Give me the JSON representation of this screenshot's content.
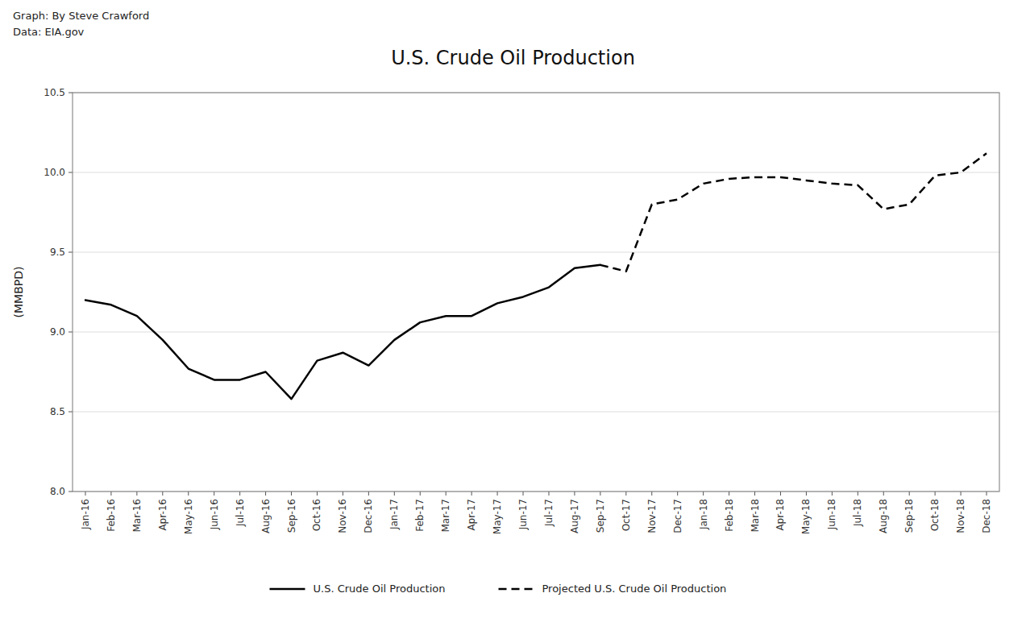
{
  "chart_data": {
    "type": "line",
    "title": "U.S. Crude Oil Production",
    "y_label": "(MMBPD)",
    "annotations": [
      "Graph: By Steve Crawford",
      "Data: EIA.gov"
    ],
    "categories": [
      "Jan-16",
      "Feb-16",
      "Mar-16",
      "Apr-16",
      "May-16",
      "Jun-16",
      "Jul-16",
      "Aug-16",
      "Sep-16",
      "Oct-16",
      "Nov-16",
      "Dec-16",
      "Jan-17",
      "Feb-17",
      "Mar-17",
      "Apr-17",
      "May-17",
      "Jun-17",
      "Jul-17",
      "Aug-17",
      "Sep-17",
      "Oct-17",
      "Nov-17",
      "Dec-17",
      "Jan-18",
      "Feb-18",
      "Mar-18",
      "Apr-18",
      "May-18",
      "Jun-18",
      "Jul-18",
      "Aug-18",
      "Sep-18",
      "Oct-18",
      "Nov-18",
      "Dec-18"
    ],
    "series": [
      {
        "name": "U.S. Crude Oil Production",
        "color": "#000000",
        "line_style": "solid",
        "values": [
          9.2,
          9.17,
          9.1,
          8.95,
          8.77,
          8.7,
          8.7,
          8.75,
          8.58,
          8.82,
          8.87,
          8.79,
          8.95,
          9.06,
          9.1,
          9.1,
          9.18,
          9.22,
          9.28,
          9.4,
          9.42,
          null,
          null,
          null,
          null,
          null,
          null,
          null,
          null,
          null,
          null,
          null,
          null,
          null,
          null,
          null
        ]
      },
      {
        "name": "Projected U.S. Crude Oil Production",
        "color": "#000000",
        "line_style": "dashed",
        "values": [
          null,
          null,
          null,
          null,
          null,
          null,
          null,
          null,
          null,
          null,
          null,
          null,
          null,
          null,
          null,
          null,
          null,
          null,
          null,
          null,
          9.42,
          9.38,
          9.8,
          9.83,
          9.93,
          9.96,
          9.97,
          9.97,
          9.95,
          9.93,
          9.92,
          9.77,
          9.8,
          9.98,
          10.0,
          10.12
        ]
      }
    ],
    "ylim": [
      8,
      10.5
    ],
    "yticks": [
      {
        "value": 8,
        "label": "8.0"
      },
      8.5,
      {
        "value": 9,
        "label": "9.0"
      },
      9.5,
      {
        "value": 10,
        "label": "10.0"
      },
      10.5
    ],
    "grid": true,
    "legend": "bottom"
  }
}
